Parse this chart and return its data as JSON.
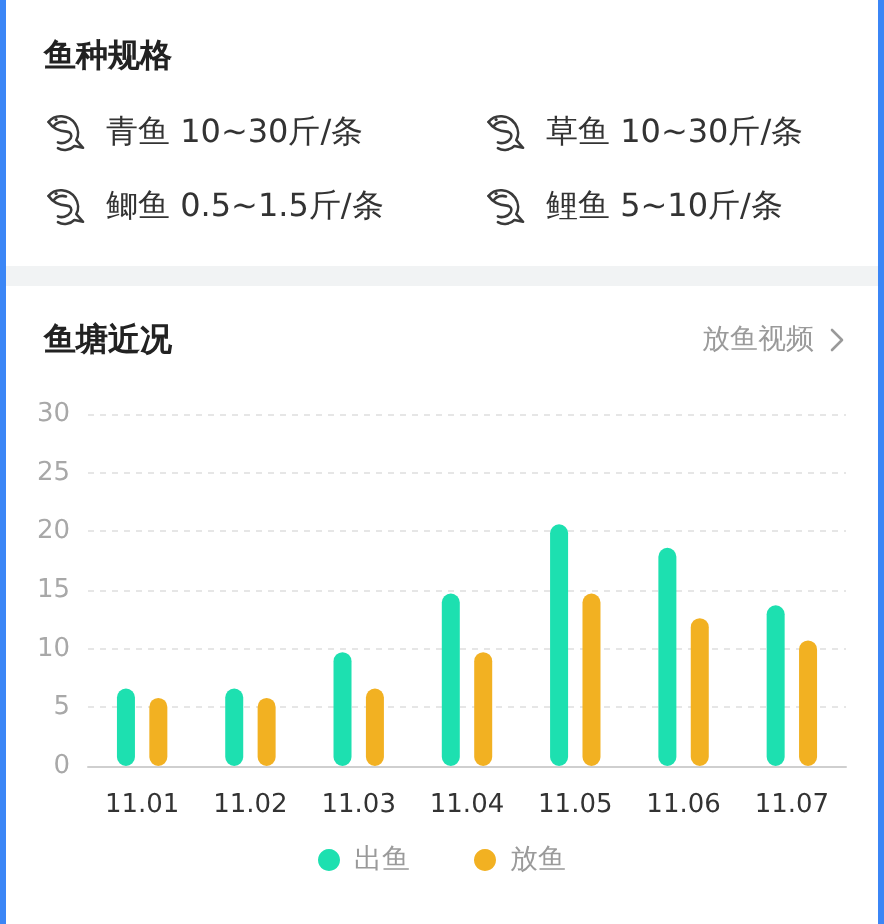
{
  "chart_data": [
    {
      "type": "other",
      "title": "鱼种规格",
      "annotations": [
        "青鱼 10~30斤/条",
        "草鱼 10~30斤/条",
        "鲫鱼 0.5~1.5斤/条",
        "鲤鱼 5~10斤/条"
      ]
    },
    {
      "type": "bar",
      "title": "鱼塘近况",
      "annotations": [
        "放鱼视频"
      ],
      "categories": [
        "11.01",
        "11.02",
        "11.03",
        "11.04",
        "11.05",
        "11.06",
        "11.07"
      ],
      "series": [
        {
          "name": "出鱼",
          "color": "#1de0b0",
          "values": [
            6.6,
            6.6,
            9.7,
            14.7,
            20.6,
            18.6,
            13.7
          ]
        },
        {
          "name": "放鱼",
          "color": "#f2b122",
          "values": [
            5.8,
            5.8,
            6.6,
            9.7,
            14.7,
            12.6,
            10.7
          ]
        }
      ],
      "ylim": [
        0,
        30
      ],
      "yticks": [
        0,
        5,
        10,
        15,
        20,
        25,
        30
      ],
      "grid": "y",
      "legend": "bottom"
    }
  ]
}
